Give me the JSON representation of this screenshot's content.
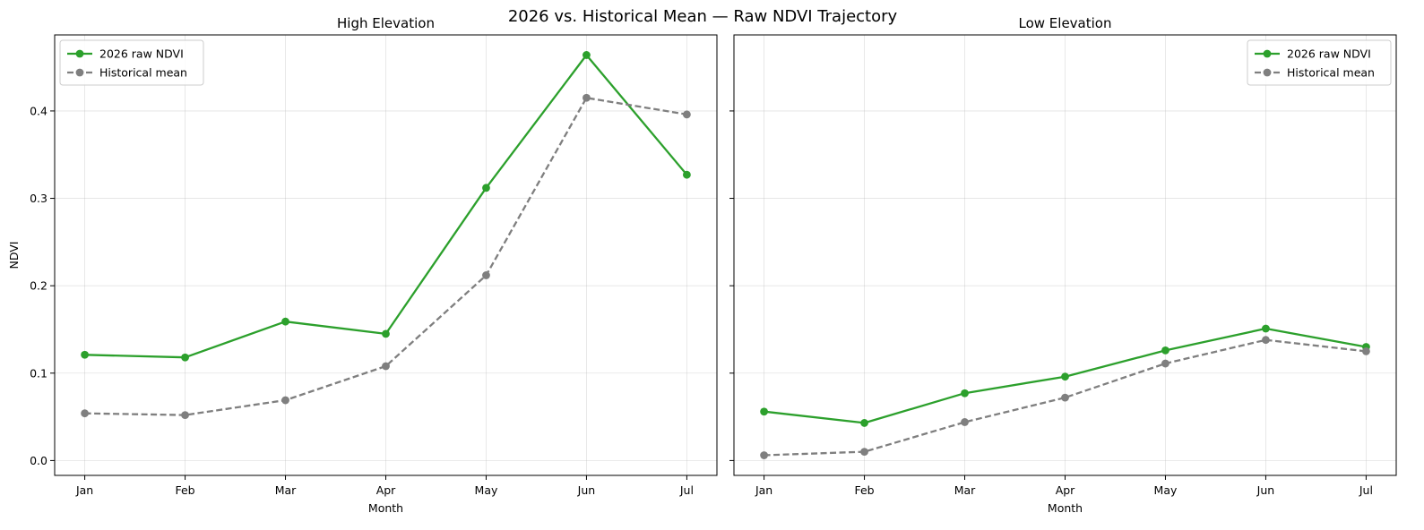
{
  "figure": {
    "title": "2026 vs. Historical Mean — Raw NDVI Trajectory"
  },
  "colors": {
    "raw_2026": "#2ca02c",
    "historical": "#7f7f7f",
    "grid": "#b0b0b0",
    "axes": "#000000"
  },
  "chart_data": [
    {
      "type": "line",
      "title": "High Elevation",
      "xlabel": "Month",
      "ylabel": "NDVI",
      "categories": [
        "Jan",
        "Feb",
        "Mar",
        "Apr",
        "May",
        "Jun",
        "Jul"
      ],
      "yticks": [
        "0.0",
        "0.1",
        "0.2",
        "0.3",
        "0.4"
      ],
      "ylim": [
        -0.017,
        0.487
      ],
      "grid": true,
      "legend_position": "upper-left",
      "series": [
        {
          "name": "2026 raw NDVI",
          "style": "solid",
          "values": [
            0.121,
            0.118,
            0.159,
            0.145,
            0.312,
            0.464,
            0.327
          ]
        },
        {
          "name": "Historical mean",
          "style": "dashed",
          "values": [
            0.054,
            0.052,
            0.069,
            0.108,
            0.212,
            0.415,
            0.396
          ]
        }
      ]
    },
    {
      "type": "line",
      "title": "Low Elevation",
      "xlabel": "Month",
      "ylabel": "",
      "categories": [
        "Jan",
        "Feb",
        "Mar",
        "Apr",
        "May",
        "Jun",
        "Jul"
      ],
      "yticks": [],
      "ylim": [
        -0.017,
        0.487
      ],
      "grid": true,
      "legend_position": "upper-right",
      "series": [
        {
          "name": "2026 raw NDVI",
          "style": "solid",
          "values": [
            0.056,
            0.043,
            0.077,
            0.096,
            0.126,
            0.151,
            0.13
          ]
        },
        {
          "name": "Historical mean",
          "style": "dashed",
          "values": [
            0.006,
            0.01,
            0.044,
            0.072,
            0.111,
            0.138,
            0.125
          ]
        }
      ]
    }
  ]
}
